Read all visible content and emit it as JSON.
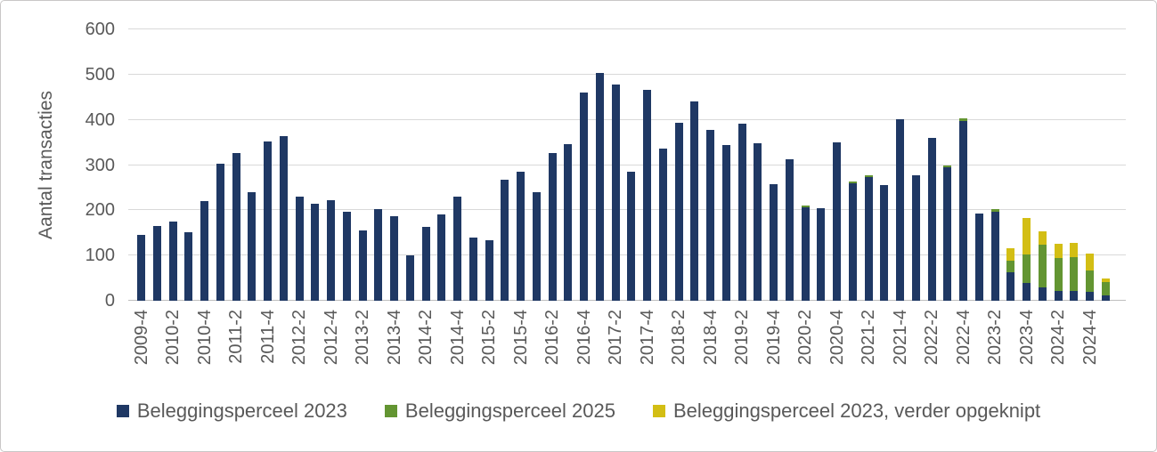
{
  "figure": {
    "background": "#FFFFFF",
    "border_color": "#C9C7C7"
  },
  "chart_data": {
    "type": "bar",
    "stacked": true,
    "title": "",
    "xlabel": "",
    "ylabel": "Aantal transacties",
    "ylim": [
      0,
      600
    ],
    "yticks": [
      0,
      100,
      200,
      300,
      400,
      500,
      600
    ],
    "grid": "horizontal",
    "legend_position": "bottom",
    "xtick_step": 2,
    "style": {
      "text_color": "#595959",
      "grid_color": "#D9D9D9",
      "axis_line_color": "#BFBFBF"
    },
    "categories": [
      "2009-4",
      "2010-1",
      "2010-2",
      "2010-3",
      "2010-4",
      "2011-1",
      "2011-2",
      "2011-3",
      "2011-4",
      "2012-1",
      "2012-2",
      "2012-3",
      "2012-4",
      "2013-1",
      "2013-2",
      "2013-3",
      "2013-4",
      "2014-1",
      "2014-2",
      "2014-3",
      "2014-4",
      "2015-1",
      "2015-2",
      "2015-3",
      "2015-4",
      "2016-1",
      "2016-2",
      "2016-3",
      "2016-4",
      "2017-1",
      "2017-2",
      "2017-3",
      "2017-4",
      "2018-1",
      "2018-2",
      "2018-3",
      "2018-4",
      "2019-1",
      "2019-2",
      "2019-3",
      "2019-4",
      "2020-1",
      "2020-2",
      "2020-3",
      "2020-4",
      "2021-1",
      "2021-2",
      "2021-3",
      "2021-4",
      "2022-1",
      "2022-2",
      "2022-3",
      "2022-4",
      "2023-1",
      "2023-2",
      "2023-3",
      "2023-4",
      "2024-1",
      "2024-2",
      "2024-3",
      "2024-4",
      "2025-1"
    ],
    "series": [
      {
        "name": "Beleggingsperceel 2023",
        "color": "#1F3864",
        "values": [
          145,
          165,
          175,
          152,
          220,
          303,
          327,
          240,
          352,
          363,
          230,
          214,
          222,
          197,
          156,
          203,
          186,
          101,
          164,
          190,
          230,
          140,
          133,
          268,
          285,
          240,
          327,
          346,
          461,
          504,
          478,
          285,
          466,
          337,
          393,
          440,
          377,
          345,
          392,
          348,
          258,
          312,
          207,
          204,
          351,
          260,
          274,
          256,
          402,
          277,
          360,
          296,
          398,
          193,
          196,
          62,
          40,
          30,
          22,
          21,
          20,
          12
        ]
      },
      {
        "name": "Beleggingsperceel 2025",
        "color": "#639532",
        "values": [
          0,
          0,
          0,
          0,
          0,
          0,
          0,
          0,
          0,
          0,
          0,
          0,
          0,
          0,
          0,
          0,
          0,
          0,
          0,
          0,
          0,
          0,
          0,
          0,
          0,
          0,
          0,
          0,
          0,
          0,
          0,
          0,
          0,
          0,
          0,
          0,
          0,
          0,
          0,
          0,
          0,
          0,
          4,
          0,
          0,
          4,
          4,
          0,
          0,
          0,
          0,
          4,
          5,
          0,
          7,
          27,
          63,
          94,
          73,
          76,
          46,
          30
        ]
      },
      {
        "name": "Beleggingsperceel 2023, verder opgeknipt",
        "color": "#D3BE14",
        "values": [
          0,
          0,
          0,
          0,
          0,
          0,
          0,
          0,
          0,
          0,
          0,
          0,
          0,
          0,
          0,
          0,
          0,
          0,
          0,
          0,
          0,
          0,
          0,
          0,
          0,
          0,
          0,
          0,
          0,
          0,
          0,
          0,
          0,
          0,
          0,
          0,
          0,
          0,
          0,
          0,
          0,
          0,
          0,
          0,
          0,
          0,
          0,
          0,
          0,
          0,
          0,
          0,
          0,
          0,
          0,
          28,
          80,
          30,
          31,
          31,
          38,
          8
        ]
      }
    ]
  }
}
